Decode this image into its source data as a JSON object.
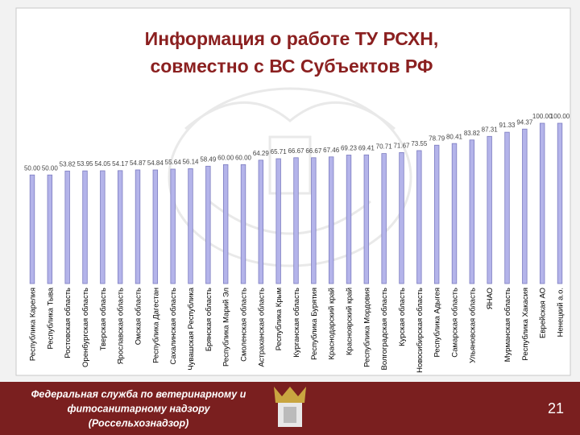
{
  "chart_data": {
    "type": "bar",
    "title": [
      "Информация о работе ТУ РСХН,",
      "совместно с ВС Субъектов РФ"
    ],
    "categories": [
      "Республика Карелия",
      "Республика Тыва",
      "Ростовская область",
      "Оренбургская область",
      "Тверская область",
      "Ярославская область",
      "Омская область",
      "Республика Дагестан",
      "Сахалинская область",
      "Чувашская Республика",
      "Брянская область",
      "Республика Марий Эл",
      "Смоленская область",
      "Астраханская область",
      "Республика Крым",
      "Курганская область",
      "Республика Бурятия",
      "Краснодарский край",
      "Красноярский край",
      "Республика Мордовия",
      "Волгоградская область",
      "Курская область",
      "Новосибирская область",
      "Республика Адыгея",
      "Самарская область",
      "Ульяновская область",
      "ЯНАО",
      "Мурманская область",
      "Республика Хакасия",
      "Еврейская АО",
      "Ненецкий а.о."
    ],
    "values": [
      50.0,
      50.0,
      53.82,
      53.95,
      54.05,
      54.17,
      54.87,
      54.84,
      55.64,
      56.14,
      58.49,
      60.0,
      60.0,
      64.29,
      65.71,
      66.67,
      66.67,
      67.46,
      69.23,
      69.41,
      70.71,
      71.67,
      73.55,
      78.79,
      80.41,
      83.82,
      87.31,
      91.33,
      94.37,
      100.0,
      100.0
    ],
    "value_labels": [
      "50.00",
      "50.00",
      "53.82",
      "53.95",
      "54.05",
      "54.17",
      "54.87",
      "54.84",
      "55.64",
      "56.14",
      "58.49",
      "60.00",
      "60.00",
      "64.29",
      "65.71",
      "66.67",
      "66.67",
      "67.46",
      "69.23",
      "69.41",
      "70.71",
      "71.67",
      "73.55",
      "78.79",
      "80.41",
      "83.82",
      "87.31",
      "91.33",
      "94.37",
      "100.00",
      "100.00"
    ],
    "color": "#b4b4ea",
    "ylim": [
      -55,
      100
    ]
  },
  "footer": {
    "lines": [
      "Федеральная служба по ветеринарному и",
      "фитосанитарному надзору",
      "(Россельхознадзор)"
    ],
    "slide_number": "21"
  }
}
